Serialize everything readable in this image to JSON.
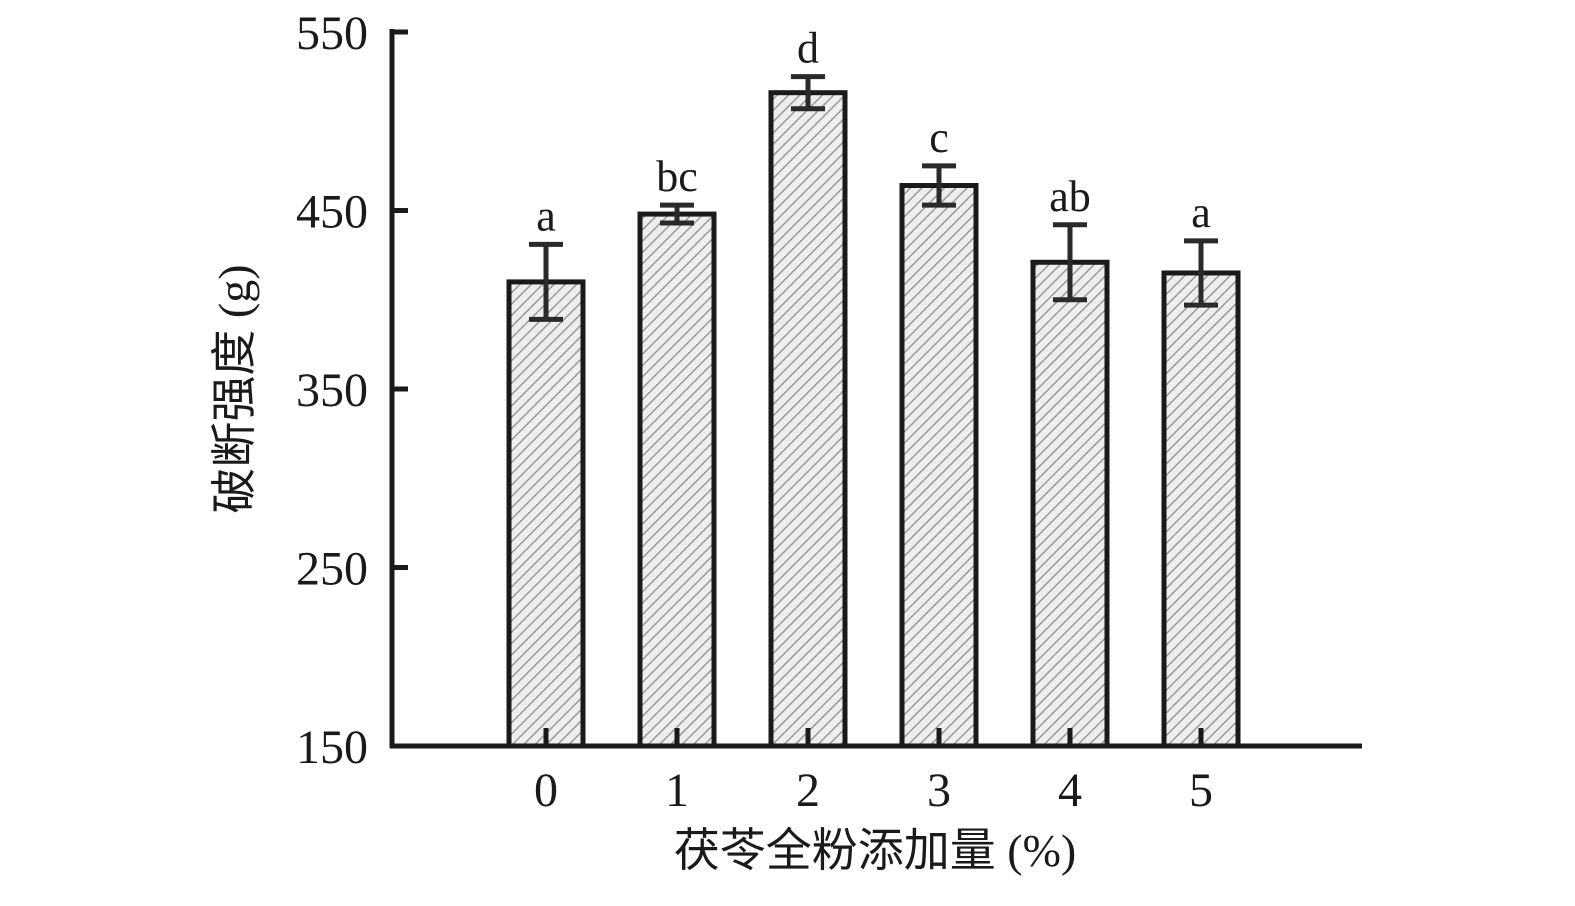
{
  "chart_data": {
    "type": "bar",
    "xlabel": "茯苓全粉添加量 (%)",
    "ylabel": "破断强度 (g)",
    "categories": [
      "0",
      "1",
      "2",
      "3",
      "4",
      "5"
    ],
    "values": [
      410,
      448,
      516,
      464,
      421,
      415
    ],
    "errors": [
      21,
      5,
      9,
      11,
      21,
      18
    ],
    "significance": [
      "a",
      "bc",
      "d",
      "c",
      "ab",
      "a"
    ],
    "color": "#d9d9d9",
    "ylim": [
      150,
      550
    ],
    "yticks": [
      150,
      250,
      350,
      450,
      550
    ],
    "grid": false
  }
}
